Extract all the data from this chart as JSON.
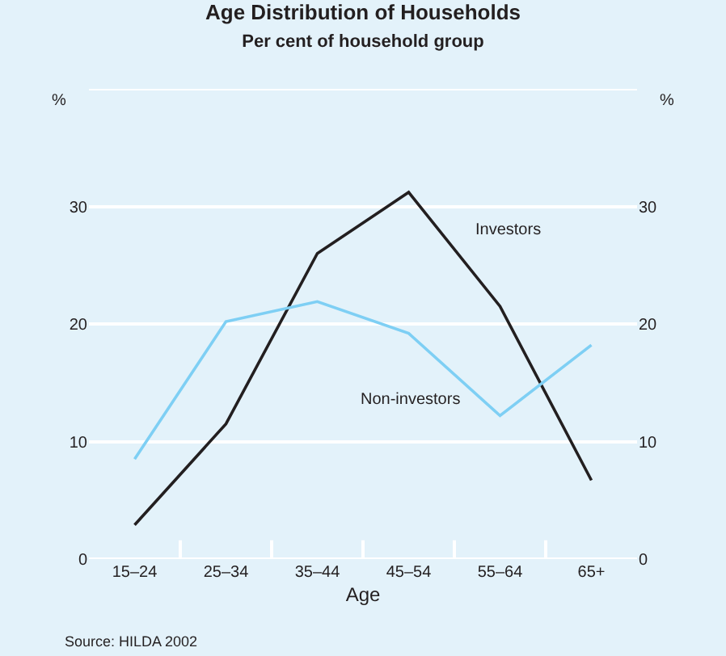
{
  "chart_data": {
    "type": "line",
    "title": "Age Distribution of Households",
    "subtitle": "Per cent of household group",
    "xlabel": "Age",
    "ylabel": "%",
    "y2label": "%",
    "categories": [
      "15–24",
      "25–34",
      "35–44",
      "45–54",
      "55–64",
      "65+"
    ],
    "series": [
      {
        "name": "Investors",
        "color": "#231f20",
        "values": [
          2.9,
          11.5,
          26.0,
          31.2,
          21.5,
          6.7
        ]
      },
      {
        "name": "Non-investors",
        "color": "#7ecff4",
        "values": [
          8.5,
          20.2,
          21.9,
          19.2,
          12.2,
          18.2
        ]
      }
    ],
    "ylim": [
      0,
      40
    ],
    "yticks": [
      0,
      10,
      20,
      30
    ],
    "y2lim": [
      0,
      40
    ],
    "y2ticks": [
      0,
      10,
      20,
      30
    ],
    "grid": "y",
    "legend": false,
    "marker": "none",
    "line_style": "solid",
    "annotations": [
      "Source: HILDA 2002"
    ]
  }
}
